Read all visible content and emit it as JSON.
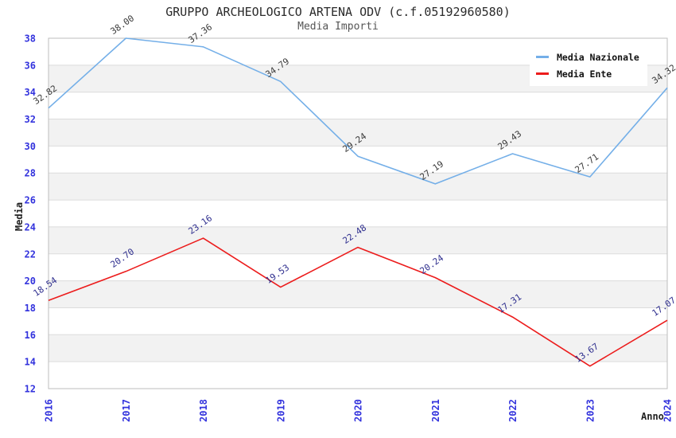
{
  "chart_data": {
    "type": "line",
    "title": "GRUPPO ARCHEOLOGICO ARTENA ODV (c.f.05192960580)",
    "subtitle": "Media Importi",
    "xlabel": "Anno",
    "ylabel": "Media",
    "categories": [
      "2016",
      "2017",
      "2018",
      "2019",
      "2020",
      "2021",
      "2022",
      "2023",
      "2024"
    ],
    "ylim": [
      12,
      38
    ],
    "y_ticks": [
      12,
      14,
      16,
      18,
      20,
      22,
      24,
      26,
      28,
      30,
      32,
      34,
      36,
      38
    ],
    "grid": "horizontal alternating bands, light gridlines every 2 units, no vertical grid",
    "legend_position": "top-right",
    "series": [
      {
        "name": "Media Nazionale",
        "color": "#74afe8",
        "label_color": "#3a3a3a",
        "values": [
          32.82,
          38.0,
          37.36,
          34.79,
          29.24,
          27.19,
          29.43,
          27.71,
          34.32
        ]
      },
      {
        "name": "Media Ente",
        "color": "#ec1c1c",
        "label_color": "#2e2e8e",
        "values": [
          18.54,
          20.7,
          23.16,
          19.53,
          22.48,
          20.24,
          17.31,
          13.67,
          17.07
        ]
      }
    ],
    "colors": {
      "tick_label": "#3333dd",
      "band_gray": "#f2f2f2",
      "gridline": "#dcdcdc",
      "spine": "#bdbdbd",
      "title": "#2b2b2b",
      "subtitle": "#555555",
      "legend_bg": "#ffffff"
    }
  }
}
